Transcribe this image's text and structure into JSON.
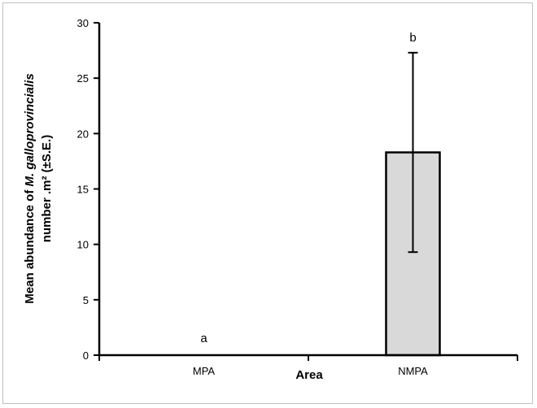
{
  "chart_data": {
    "type": "bar",
    "categories": [
      "MPA",
      "NMPA"
    ],
    "values": [
      0,
      18.3
    ],
    "errors": [
      0,
      9.0
    ],
    "significance_labels": [
      "a",
      "b"
    ],
    "bar_color": "#d9d9d9",
    "edge_color": "#000000",
    "xlabel": "Area",
    "ylabel_parts": {
      "prefix": "Mean abundance of ",
      "species": "M. galloprovincialis",
      "line2": "number .m² (±S.E.)"
    },
    "ylim": [
      0,
      30
    ],
    "yticks": [
      0,
      5,
      10,
      15,
      20,
      25,
      30
    ],
    "grid": false,
    "legend": "none"
  }
}
